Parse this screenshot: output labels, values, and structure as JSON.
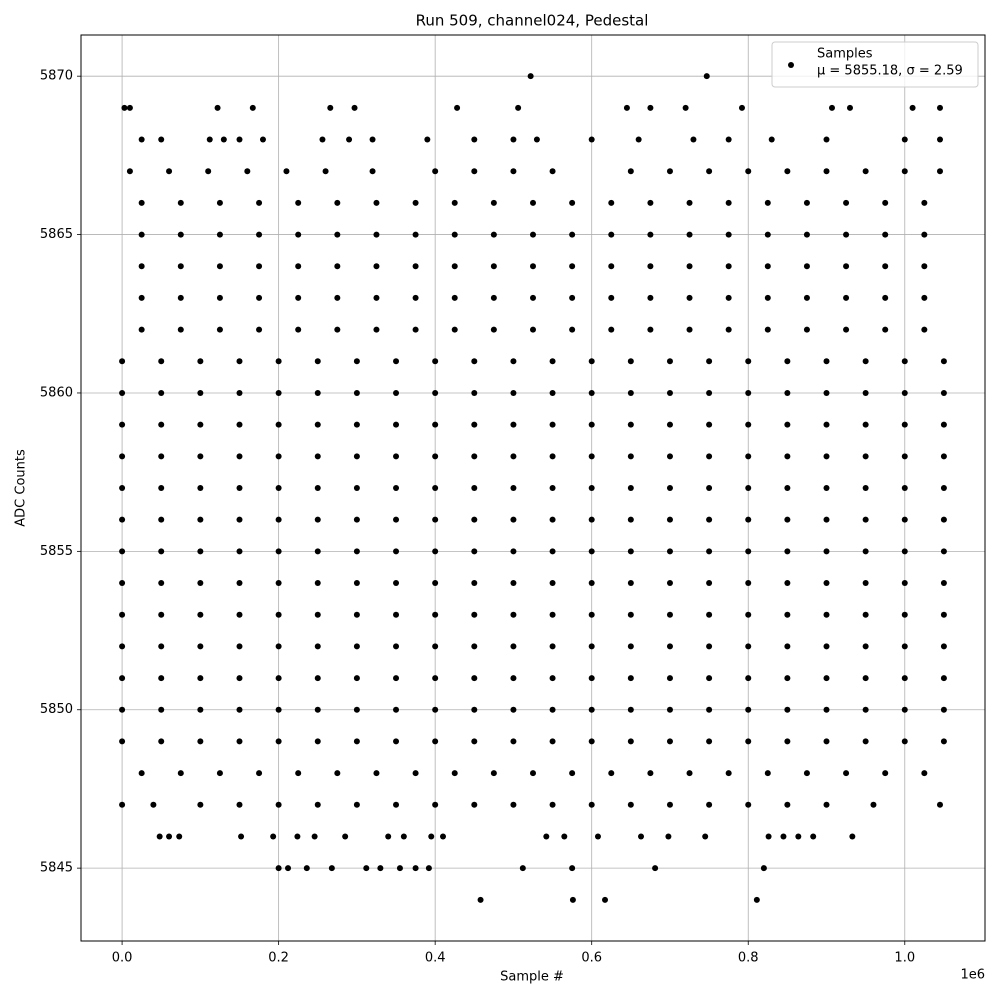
{
  "chart_data": {
    "type": "scatter",
    "title": "Run 509, channel024, Pedestal",
    "x_label": "Sample #",
    "y_label": "ADC Counts",
    "x_offset_label": "1e6",
    "legend_note": "μ = 5855.18, σ = 2.59",
    "legend": "upper right",
    "grid": true,
    "xlim": [
      -52500,
      1102500
    ],
    "ylim": [
      5842.7,
      5871.3
    ],
    "xticks": [
      {
        "value": 0,
        "label": "0.0"
      },
      {
        "value": 200000,
        "label": "0.2"
      },
      {
        "value": 400000,
        "label": "0.4"
      },
      {
        "value": 600000,
        "label": "0.6"
      },
      {
        "value": 800000,
        "label": "0.8"
      },
      {
        "value": 1000000,
        "label": "1.0"
      }
    ],
    "yticks": [
      5845,
      5850,
      5855,
      5860,
      5865,
      5870
    ],
    "series": [
      {
        "name": "Samples",
        "color": "#000000",
        "x": [
          522000,
          747000,
          3000,
          10000,
          122000,
          167000,
          266000,
          297000,
          428000,
          506000,
          645000,
          675000,
          720000,
          792000,
          907000,
          930000,
          1010000,
          1045000,
          25000,
          50000,
          112000,
          130000,
          150000,
          180000,
          256000,
          290000,
          320000,
          390000,
          450000,
          500000,
          530000,
          600000,
          660000,
          730000,
          775000,
          830000,
          900000,
          1000000,
          1045000,
          10000,
          60000,
          110000,
          160000,
          210000,
          260000,
          320000,
          400000,
          450000,
          500000,
          550000,
          650000,
          700000,
          750000,
          800000,
          850000,
          900000,
          950000,
          1000000,
          1045000,
          25000,
          75000,
          125000,
          175000,
          225000,
          275000,
          325000,
          375000,
          425000,
          475000,
          525000,
          575000,
          625000,
          675000,
          725000,
          775000,
          825000,
          875000,
          925000,
          975000,
          1025000,
          25000,
          75000,
          125000,
          175000,
          225000,
          275000,
          325000,
          375000,
          425000,
          475000,
          525000,
          575000,
          625000,
          675000,
          725000,
          775000,
          825000,
          875000,
          925000,
          975000,
          1025000,
          25000,
          75000,
          125000,
          175000,
          225000,
          275000,
          325000,
          375000,
          425000,
          475000,
          525000,
          575000,
          625000,
          675000,
          725000,
          775000,
          825000,
          875000,
          925000,
          975000,
          1025000,
          25000,
          75000,
          125000,
          175000,
          225000,
          275000,
          325000,
          375000,
          425000,
          475000,
          525000,
          575000,
          625000,
          675000,
          725000,
          775000,
          825000,
          875000,
          925000,
          975000,
          1025000,
          25000,
          75000,
          125000,
          175000,
          225000,
          275000,
          325000,
          375000,
          425000,
          475000,
          525000,
          575000,
          625000,
          675000,
          725000,
          775000,
          825000,
          875000,
          925000,
          975000,
          1025000,
          0,
          50000,
          100000,
          150000,
          200000,
          250000,
          300000,
          350000,
          400000,
          450000,
          500000,
          550000,
          600000,
          650000,
          700000,
          750000,
          800000,
          850000,
          900000,
          950000,
          1000000,
          1050000,
          0,
          50000,
          100000,
          150000,
          200000,
          250000,
          300000,
          350000,
          400000,
          450000,
          500000,
          550000,
          600000,
          650000,
          700000,
          750000,
          800000,
          850000,
          900000,
          950000,
          1000000,
          1050000,
          0,
          50000,
          100000,
          150000,
          200000,
          250000,
          300000,
          350000,
          400000,
          450000,
          500000,
          550000,
          600000,
          650000,
          700000,
          750000,
          800000,
          850000,
          900000,
          950000,
          1000000,
          1050000,
          0,
          50000,
          100000,
          150000,
          200000,
          250000,
          300000,
          350000,
          400000,
          450000,
          500000,
          550000,
          600000,
          650000,
          700000,
          750000,
          800000,
          850000,
          900000,
          950000,
          1000000,
          1050000,
          0,
          50000,
          100000,
          150000,
          200000,
          250000,
          300000,
          350000,
          400000,
          450000,
          500000,
          550000,
          600000,
          650000,
          700000,
          750000,
          800000,
          850000,
          900000,
          950000,
          1000000,
          1050000,
          0,
          50000,
          100000,
          150000,
          200000,
          250000,
          300000,
          350000,
          400000,
          450000,
          500000,
          550000,
          600000,
          650000,
          700000,
          750000,
          800000,
          850000,
          900000,
          950000,
          1000000,
          1050000,
          0,
          50000,
          100000,
          150000,
          200000,
          250000,
          300000,
          350000,
          400000,
          450000,
          500000,
          550000,
          600000,
          650000,
          700000,
          750000,
          800000,
          850000,
          900000,
          950000,
          1000000,
          1050000,
          0,
          50000,
          100000,
          150000,
          200000,
          250000,
          300000,
          350000,
          400000,
          450000,
          500000,
          550000,
          600000,
          650000,
          700000,
          750000,
          800000,
          850000,
          900000,
          950000,
          1000000,
          1050000,
          0,
          50000,
          100000,
          150000,
          200000,
          250000,
          300000,
          350000,
          400000,
          450000,
          500000,
          550000,
          600000,
          650000,
          700000,
          750000,
          800000,
          850000,
          900000,
          950000,
          1000000,
          1050000,
          0,
          50000,
          100000,
          150000,
          200000,
          250000,
          300000,
          350000,
          400000,
          450000,
          500000,
          550000,
          600000,
          650000,
          700000,
          750000,
          800000,
          850000,
          900000,
          950000,
          1000000,
          1050000,
          0,
          50000,
          100000,
          150000,
          200000,
          250000,
          300000,
          350000,
          400000,
          450000,
          500000,
          550000,
          600000,
          650000,
          700000,
          750000,
          800000,
          850000,
          900000,
          950000,
          1000000,
          1050000,
          0,
          50000,
          100000,
          150000,
          200000,
          250000,
          300000,
          350000,
          400000,
          450000,
          500000,
          550000,
          600000,
          650000,
          700000,
          750000,
          800000,
          850000,
          900000,
          950000,
          1000000,
          1050000,
          0,
          50000,
          100000,
          150000,
          200000,
          250000,
          300000,
          350000,
          400000,
          450000,
          500000,
          550000,
          600000,
          650000,
          700000,
          750000,
          800000,
          850000,
          900000,
          950000,
          1000000,
          1050000,
          25000,
          75000,
          125000,
          175000,
          225000,
          275000,
          325000,
          375000,
          425000,
          475000,
          525000,
          575000,
          625000,
          675000,
          725000,
          775000,
          825000,
          875000,
          925000,
          975000,
          1025000,
          0,
          40000,
          100000,
          150000,
          200000,
          250000,
          300000,
          350000,
          400000,
          450000,
          500000,
          550000,
          600000,
          650000,
          700000,
          750000,
          800000,
          850000,
          900000,
          960000,
          1045000,
          48000,
          60000,
          73000,
          152000,
          193000,
          224000,
          246000,
          285000,
          340000,
          360000,
          395000,
          410000,
          542000,
          565000,
          608000,
          663000,
          698000,
          745000,
          826000,
          845000,
          864000,
          883000,
          933000,
          200000,
          212000,
          236000,
          268000,
          312000,
          330000,
          355000,
          375000,
          392000,
          512000,
          575000,
          681000,
          820000,
          458000,
          576000,
          617000,
          811000
        ],
        "values": [
          5870,
          5870,
          5869,
          5869,
          5869,
          5869,
          5869,
          5869,
          5869,
          5869,
          5869,
          5869,
          5869,
          5869,
          5869,
          5869,
          5869,
          5869,
          5868,
          5868,
          5868,
          5868,
          5868,
          5868,
          5868,
          5868,
          5868,
          5868,
          5868,
          5868,
          5868,
          5868,
          5868,
          5868,
          5868,
          5868,
          5868,
          5868,
          5868,
          5867,
          5867,
          5867,
          5867,
          5867,
          5867,
          5867,
          5867,
          5867,
          5867,
          5867,
          5867,
          5867,
          5867,
          5867,
          5867,
          5867,
          5867,
          5867,
          5867,
          5866,
          5866,
          5866,
          5866,
          5866,
          5866,
          5866,
          5866,
          5866,
          5866,
          5866,
          5866,
          5866,
          5866,
          5866,
          5866,
          5866,
          5866,
          5866,
          5866,
          5866,
          5865,
          5865,
          5865,
          5865,
          5865,
          5865,
          5865,
          5865,
          5865,
          5865,
          5865,
          5865,
          5865,
          5865,
          5865,
          5865,
          5865,
          5865,
          5865,
          5865,
          5865,
          5864,
          5864,
          5864,
          5864,
          5864,
          5864,
          5864,
          5864,
          5864,
          5864,
          5864,
          5864,
          5864,
          5864,
          5864,
          5864,
          5864,
          5864,
          5864,
          5864,
          5864,
          5863,
          5863,
          5863,
          5863,
          5863,
          5863,
          5863,
          5863,
          5863,
          5863,
          5863,
          5863,
          5863,
          5863,
          5863,
          5863,
          5863,
          5863,
          5863,
          5863,
          5863,
          5862,
          5862,
          5862,
          5862,
          5862,
          5862,
          5862,
          5862,
          5862,
          5862,
          5862,
          5862,
          5862,
          5862,
          5862,
          5862,
          5862,
          5862,
          5862,
          5862,
          5862,
          5861,
          5861,
          5861,
          5861,
          5861,
          5861,
          5861,
          5861,
          5861,
          5861,
          5861,
          5861,
          5861,
          5861,
          5861,
          5861,
          5861,
          5861,
          5861,
          5861,
          5861,
          5861,
          5860,
          5860,
          5860,
          5860,
          5860,
          5860,
          5860,
          5860,
          5860,
          5860,
          5860,
          5860,
          5860,
          5860,
          5860,
          5860,
          5860,
          5860,
          5860,
          5860,
          5860,
          5860,
          5859,
          5859,
          5859,
          5859,
          5859,
          5859,
          5859,
          5859,
          5859,
          5859,
          5859,
          5859,
          5859,
          5859,
          5859,
          5859,
          5859,
          5859,
          5859,
          5859,
          5859,
          5859,
          5858,
          5858,
          5858,
          5858,
          5858,
          5858,
          5858,
          5858,
          5858,
          5858,
          5858,
          5858,
          5858,
          5858,
          5858,
          5858,
          5858,
          5858,
          5858,
          5858,
          5858,
          5858,
          5857,
          5857,
          5857,
          5857,
          5857,
          5857,
          5857,
          5857,
          5857,
          5857,
          5857,
          5857,
          5857,
          5857,
          5857,
          5857,
          5857,
          5857,
          5857,
          5857,
          5857,
          5857,
          5856,
          5856,
          5856,
          5856,
          5856,
          5856,
          5856,
          5856,
          5856,
          5856,
          5856,
          5856,
          5856,
          5856,
          5856,
          5856,
          5856,
          5856,
          5856,
          5856,
          5856,
          5856,
          5855,
          5855,
          5855,
          5855,
          5855,
          5855,
          5855,
          5855,
          5855,
          5855,
          5855,
          5855,
          5855,
          5855,
          5855,
          5855,
          5855,
          5855,
          5855,
          5855,
          5855,
          5855,
          5854,
          5854,
          5854,
          5854,
          5854,
          5854,
          5854,
          5854,
          5854,
          5854,
          5854,
          5854,
          5854,
          5854,
          5854,
          5854,
          5854,
          5854,
          5854,
          5854,
          5854,
          5854,
          5853,
          5853,
          5853,
          5853,
          5853,
          5853,
          5853,
          5853,
          5853,
          5853,
          5853,
          5853,
          5853,
          5853,
          5853,
          5853,
          5853,
          5853,
          5853,
          5853,
          5853,
          5853,
          5852,
          5852,
          5852,
          5852,
          5852,
          5852,
          5852,
          5852,
          5852,
          5852,
          5852,
          5852,
          5852,
          5852,
          5852,
          5852,
          5852,
          5852,
          5852,
          5852,
          5852,
          5852,
          5851,
          5851,
          5851,
          5851,
          5851,
          5851,
          5851,
          5851,
          5851,
          5851,
          5851,
          5851,
          5851,
          5851,
          5851,
          5851,
          5851,
          5851,
          5851,
          5851,
          5851,
          5851,
          5850,
          5850,
          5850,
          5850,
          5850,
          5850,
          5850,
          5850,
          5850,
          5850,
          5850,
          5850,
          5850,
          5850,
          5850,
          5850,
          5850,
          5850,
          5850,
          5850,
          5850,
          5850,
          5849,
          5849,
          5849,
          5849,
          5849,
          5849,
          5849,
          5849,
          5849,
          5849,
          5849,
          5849,
          5849,
          5849,
          5849,
          5849,
          5849,
          5849,
          5849,
          5849,
          5849,
          5849,
          5848,
          5848,
          5848,
          5848,
          5848,
          5848,
          5848,
          5848,
          5848,
          5848,
          5848,
          5848,
          5848,
          5848,
          5848,
          5848,
          5848,
          5848,
          5848,
          5848,
          5848,
          5847,
          5847,
          5847,
          5847,
          5847,
          5847,
          5847,
          5847,
          5847,
          5847,
          5847,
          5847,
          5847,
          5847,
          5847,
          5847,
          5847,
          5847,
          5847,
          5847,
          5847,
          5846,
          5846,
          5846,
          5846,
          5846,
          5846,
          5846,
          5846,
          5846,
          5846,
          5846,
          5846,
          5846,
          5846,
          5846,
          5846,
          5846,
          5846,
          5846,
          5846,
          5846,
          5846,
          5846,
          5845,
          5845,
          5845,
          5845,
          5845,
          5845,
          5845,
          5845,
          5845,
          5845,
          5845,
          5845,
          5845,
          5844,
          5844,
          5844,
          5844
        ]
      }
    ]
  }
}
